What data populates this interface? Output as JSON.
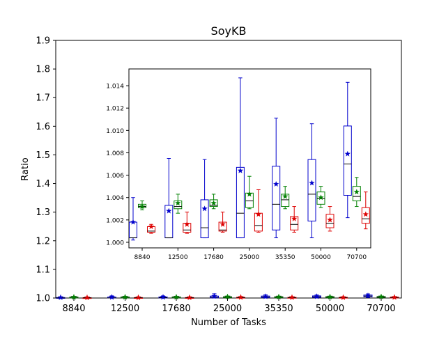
{
  "chart_data": {
    "type": "box",
    "title": "SoyKB",
    "xlabel": "Number of Tasks",
    "ylabel": "Ratio",
    "categories": [
      "8840",
      "12500",
      "17680",
      "25000",
      "35350",
      "50000",
      "70700"
    ],
    "y_ticks": [
      "1.0",
      "1.1",
      "1.2",
      "1.3",
      "1.4",
      "1.5",
      "1.6",
      "1.7",
      "1.8",
      "1.9"
    ],
    "ylim": [
      1.0,
      1.9
    ],
    "grid": false,
    "mean_marker": "star",
    "series": [
      {
        "color": "#0000cc",
        "boxes": [
          {
            "min": 1.0002,
            "q1": 1.0004,
            "median": 1.0004,
            "q3": 1.0018,
            "max": 1.004,
            "mean": 1.0018
          },
          {
            "min": 1.0004,
            "q1": 1.0004,
            "median": 1.0004,
            "q3": 1.0033,
            "max": 1.0075,
            "mean": 1.0028
          },
          {
            "min": 1.0004,
            "q1": 1.0004,
            "median": 1.0013,
            "q3": 1.0038,
            "max": 1.0074,
            "mean": 1.003
          },
          {
            "min": 1.0004,
            "q1": 1.0004,
            "median": 1.0026,
            "q3": 1.0067,
            "max": 1.0147,
            "mean": 1.0064
          },
          {
            "min": 1.0004,
            "q1": 1.0011,
            "median": 1.0034,
            "q3": 1.0068,
            "max": 1.0111,
            "mean": 1.0052
          },
          {
            "min": 1.0004,
            "q1": 1.0019,
            "median": 1.0043,
            "q3": 1.0074,
            "max": 1.0106,
            "mean": 1.0053
          },
          {
            "min": 1.0022,
            "q1": 1.0042,
            "median": 1.007,
            "q3": 1.0104,
            "max": 1.0143,
            "mean": 1.0079
          }
        ]
      },
      {
        "color": "#008000",
        "boxes": [
          {
            "min": 1.0029,
            "q1": 1.0031,
            "median": 1.0032,
            "q3": 1.0034,
            "max": 1.0037,
            "mean": 1.0032
          },
          {
            "min": 1.0026,
            "q1": 1.003,
            "median": 1.0032,
            "q3": 1.0037,
            "max": 1.0043,
            "mean": 1.0035
          },
          {
            "min": 1.003,
            "q1": 1.0032,
            "median": 1.0033,
            "q3": 1.0038,
            "max": 1.0043,
            "mean": 1.0035
          },
          {
            "min": 1.003,
            "q1": 1.0031,
            "median": 1.0037,
            "q3": 1.0044,
            "max": 1.0059,
            "mean": 1.0043
          },
          {
            "min": 1.003,
            "q1": 1.0032,
            "median": 1.0038,
            "q3": 1.0043,
            "max": 1.005,
            "mean": 1.0041
          },
          {
            "min": 1.0031,
            "q1": 1.0034,
            "median": 1.0039,
            "q3": 1.0045,
            "max": 1.005,
            "mean": 1.004
          },
          {
            "min": 1.0032,
            "q1": 1.0037,
            "median": 1.0041,
            "q3": 1.005,
            "max": 1.0058,
            "mean": 1.0045
          }
        ]
      },
      {
        "color": "#dd0000",
        "boxes": [
          {
            "min": 1.0008,
            "q1": 1.0009,
            "median": 1.001,
            "q3": 1.0014,
            "max": 1.0016,
            "mean": 1.0014
          },
          {
            "min": 1.0008,
            "q1": 1.0009,
            "median": 1.0011,
            "q3": 1.0017,
            "max": 1.0027,
            "mean": 1.0016
          },
          {
            "min": 1.0009,
            "q1": 1.001,
            "median": 1.0011,
            "q3": 1.0018,
            "max": 1.0027,
            "mean": 1.0016
          },
          {
            "min": 1.0009,
            "q1": 1.001,
            "median": 1.0015,
            "q3": 1.0026,
            "max": 1.0047,
            "mean": 1.0025
          },
          {
            "min": 1.0009,
            "q1": 1.0011,
            "median": 1.0016,
            "q3": 1.0023,
            "max": 1.0032,
            "mean": 1.0021
          },
          {
            "min": 1.001,
            "q1": 1.0013,
            "median": 1.0017,
            "q3": 1.0025,
            "max": 1.0032,
            "mean": 1.002
          },
          {
            "min": 1.0012,
            "q1": 1.0017,
            "median": 1.0021,
            "q3": 1.0031,
            "max": 1.0045,
            "mean": 1.0025
          }
        ]
      }
    ],
    "inset": {
      "type": "box",
      "ylim": [
        0.9995,
        1.0155
      ],
      "y_ticks": [
        "1.000",
        "1.002",
        "1.004",
        "1.006",
        "1.008",
        "1.010",
        "1.012",
        "1.014"
      ],
      "categories": [
        "8840",
        "12500",
        "17680",
        "25000",
        "35350",
        "50000",
        "70700"
      ]
    }
  }
}
